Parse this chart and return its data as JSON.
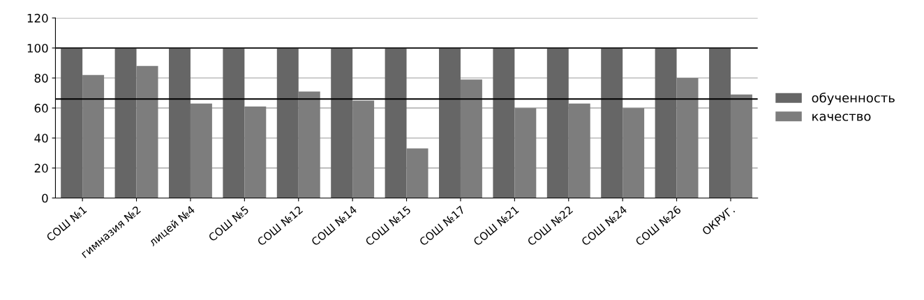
{
  "chart_data": {
    "type": "bar",
    "categories": [
      "СОШ №1",
      "гимназия №2",
      "лицей №4",
      "СОШ №5",
      "СОШ №12",
      "СОШ №14",
      "СОШ №15",
      "СОШ №17",
      "СОШ №21",
      "СОШ №22",
      "СОШ №24",
      "СОШ №26",
      "ОКРУГ."
    ],
    "series": [
      {
        "name": "обученность",
        "color": "#666666",
        "values": [
          100,
          100,
          100,
          100,
          100,
          100,
          100,
          100,
          100,
          100,
          100,
          100,
          100
        ]
      },
      {
        "name": "качество",
        "color": "#7d7d7d",
        "values": [
          82,
          88,
          63,
          61,
          71,
          65,
          33,
          79,
          60,
          63,
          60,
          80,
          69
        ]
      }
    ],
    "ylim": [
      0,
      120
    ],
    "yticks": [
      0,
      20,
      40,
      60,
      80,
      100,
      120
    ],
    "grid": "y",
    "legend": "right",
    "ref_lines": [
      {
        "axis": "y",
        "value": 100,
        "color": "#222222"
      },
      {
        "axis": "y",
        "value": 66,
        "color": "#000000"
      }
    ]
  }
}
